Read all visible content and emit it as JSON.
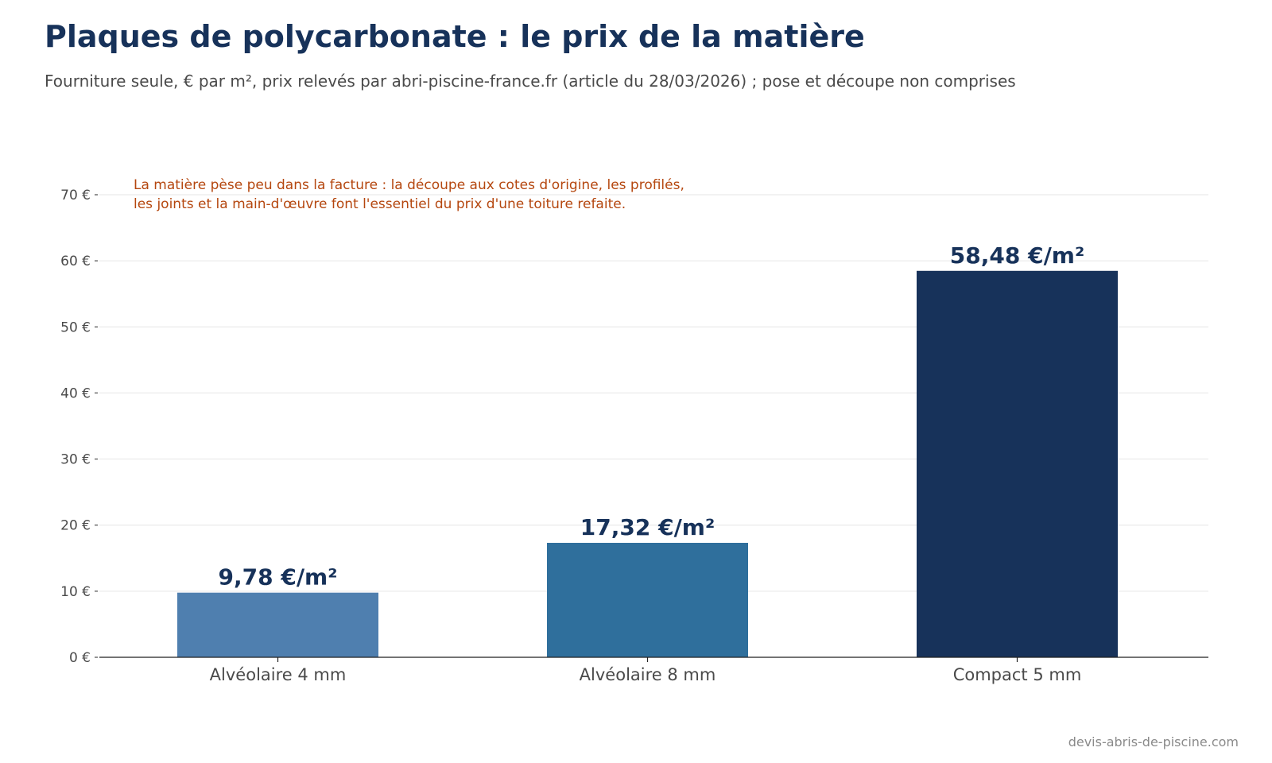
{
  "chart_data": {
    "type": "bar",
    "title": "Plaques de polycarbonate : le prix de la matière",
    "subtitle": "Fourniture seule, € par m², prix relevés par abri-piscine-france.fr (article du 28/03/2026) ; pose et découpe non comprises",
    "categories": [
      "Alvéolaire 4 mm",
      "Alvéolaire 8 mm",
      "Compact 5 mm"
    ],
    "values": [
      9.78,
      17.32,
      58.48
    ],
    "data_labels": [
      "9,78 €/m²",
      "17,32 €/m²",
      "58,48 €/m²"
    ],
    "bar_colors": [
      "#4f7faf",
      "#2f6f9c",
      "#17325a"
    ],
    "ylim": [
      0,
      70
    ],
    "yticks": [
      0,
      10,
      20,
      30,
      40,
      50,
      60,
      70
    ],
    "ytick_labels": [
      "0 €",
      "10 €",
      "20 €",
      "30 €",
      "40 €",
      "50 €",
      "60 €",
      "70 €"
    ],
    "grid": true,
    "xlabel": "",
    "ylabel": "",
    "annotation": {
      "lines": [
        "La matière pèse peu dans la facture : la découpe aux cotes d'origine, les profilés,",
        "les joints et la main-d'œuvre font l'essentiel du prix d'une toiture refaite."
      ],
      "color": "#b5470f"
    }
  },
  "footer": {
    "source": "devis-abris-de-piscine.com"
  },
  "colors": {
    "title": "#17325a",
    "text": "#4a4a4a",
    "label": "#17325a",
    "grid": "#e6e6e6",
    "axis": "#222222"
  }
}
